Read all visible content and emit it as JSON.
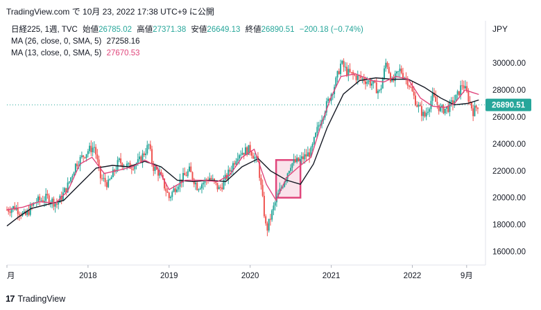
{
  "header": {
    "caption": "TradingView.com で 10月 23, 2022 17:38 UTC+9 に公開"
  },
  "legend": {
    "symbol": "日経225, 1週, TVC",
    "open_label": "始値",
    "open": "26785.02",
    "high_label": "高値",
    "high": "27371.38",
    "low_label": "安値",
    "low": "26649.13",
    "close_label": "終値",
    "close": "26890.51",
    "change": "−200.18 (−0.74%)",
    "ma26_label": "MA (26, close, 0, SMA, 5)",
    "ma26_value": "27258.16",
    "ma13_label": "MA (13, close, 0, SMA, 5)",
    "ma13_value": "27670.53"
  },
  "currency": "JPY",
  "price_tag": "26890.51",
  "footer": {
    "brand": "TradingView",
    "logo_icon": "tradingview-logo-icon"
  },
  "colors": {
    "up": "#26a69a",
    "down": "#ef5350",
    "ma13": "#e0457b",
    "ma26": "#131722",
    "highlight": "#e0457b"
  },
  "chart_data": {
    "type": "candlestick",
    "title": "日経225, 1週, TVC",
    "ylim": [
      15000,
      31600
    ],
    "y_ticks": [
      16000,
      18000,
      20000,
      22000,
      24000,
      26000,
      28000,
      30000
    ],
    "y_tick_labels": [
      "16000.00",
      "18000.00",
      "20000.00",
      "22000.00",
      "24000.00",
      "26000.00",
      "28000.00",
      "30000.00"
    ],
    "x_labels": [
      {
        "label": "月",
        "year": 2017.0
      },
      {
        "label": "2018",
        "year": 2018.0
      },
      {
        "label": "2019",
        "year": 2019.0
      },
      {
        "label": "2020",
        "year": 2020.0
      },
      {
        "label": "2021",
        "year": 2021.0
      },
      {
        "label": "2022",
        "year": 2022.0
      },
      {
        "label": "9月",
        "year": 2022.67
      }
    ],
    "x_range": [
      2017.0,
      2022.86
    ],
    "last_close": 26890.51,
    "closes": [
      {
        "t": 2017.0,
        "v": 19100
      },
      {
        "t": 2017.1,
        "v": 19300
      },
      {
        "t": 2017.22,
        "v": 18600
      },
      {
        "t": 2017.35,
        "v": 19700
      },
      {
        "t": 2017.5,
        "v": 20000
      },
      {
        "t": 2017.62,
        "v": 19500
      },
      {
        "t": 2017.75,
        "v": 20900
      },
      {
        "t": 2017.85,
        "v": 22500
      },
      {
        "t": 2018.0,
        "v": 23500
      },
      {
        "t": 2018.08,
        "v": 23800
      },
      {
        "t": 2018.15,
        "v": 21500
      },
      {
        "t": 2018.25,
        "v": 21000
      },
      {
        "t": 2018.38,
        "v": 22700
      },
      {
        "t": 2018.5,
        "v": 22300
      },
      {
        "t": 2018.62,
        "v": 22600
      },
      {
        "t": 2018.75,
        "v": 23900
      },
      {
        "t": 2018.8,
        "v": 22300
      },
      {
        "t": 2018.88,
        "v": 21800
      },
      {
        "t": 2019.0,
        "v": 20000
      },
      {
        "t": 2019.1,
        "v": 21000
      },
      {
        "t": 2019.25,
        "v": 22000
      },
      {
        "t": 2019.35,
        "v": 20800
      },
      {
        "t": 2019.5,
        "v": 21500
      },
      {
        "t": 2019.62,
        "v": 20600
      },
      {
        "t": 2019.75,
        "v": 22000
      },
      {
        "t": 2019.85,
        "v": 23300
      },
      {
        "t": 2020.0,
        "v": 23600
      },
      {
        "t": 2020.1,
        "v": 22500
      },
      {
        "t": 2020.2,
        "v": 17500
      },
      {
        "t": 2020.3,
        "v": 19500
      },
      {
        "t": 2020.4,
        "v": 21000
      },
      {
        "t": 2020.5,
        "v": 22500
      },
      {
        "t": 2020.62,
        "v": 22800
      },
      {
        "t": 2020.75,
        "v": 23400
      },
      {
        "t": 2020.85,
        "v": 25500
      },
      {
        "t": 2020.95,
        "v": 27000
      },
      {
        "t": 2021.05,
        "v": 28500
      },
      {
        "t": 2021.12,
        "v": 30000
      },
      {
        "t": 2021.2,
        "v": 29300
      },
      {
        "t": 2021.3,
        "v": 29000
      },
      {
        "t": 2021.4,
        "v": 28800
      },
      {
        "t": 2021.5,
        "v": 28500
      },
      {
        "t": 2021.6,
        "v": 27800
      },
      {
        "t": 2021.68,
        "v": 30200
      },
      {
        "t": 2021.75,
        "v": 28500
      },
      {
        "t": 2021.85,
        "v": 29500
      },
      {
        "t": 2021.95,
        "v": 28600
      },
      {
        "t": 2022.05,
        "v": 27000
      },
      {
        "t": 2022.15,
        "v": 26000
      },
      {
        "t": 2022.25,
        "v": 27500
      },
      {
        "t": 2022.35,
        "v": 26500
      },
      {
        "t": 2022.45,
        "v": 26700
      },
      {
        "t": 2022.55,
        "v": 27500
      },
      {
        "t": 2022.62,
        "v": 28500
      },
      {
        "t": 2022.68,
        "v": 27600
      },
      {
        "t": 2022.75,
        "v": 26400
      },
      {
        "t": 2022.81,
        "v": 26890
      }
    ],
    "ma13": [
      {
        "t": 2017.0,
        "v": 19100
      },
      {
        "t": 2017.2,
        "v": 19300
      },
      {
        "t": 2017.4,
        "v": 19700
      },
      {
        "t": 2017.6,
        "v": 19600
      },
      {
        "t": 2017.75,
        "v": 20500
      },
      {
        "t": 2017.9,
        "v": 22500
      },
      {
        "t": 2018.05,
        "v": 23000
      },
      {
        "t": 2018.2,
        "v": 21800
      },
      {
        "t": 2018.35,
        "v": 22000
      },
      {
        "t": 2018.55,
        "v": 22300
      },
      {
        "t": 2018.7,
        "v": 22800
      },
      {
        "t": 2018.85,
        "v": 22300
      },
      {
        "t": 2019.0,
        "v": 20600
      },
      {
        "t": 2019.2,
        "v": 21300
      },
      {
        "t": 2019.4,
        "v": 21300
      },
      {
        "t": 2019.6,
        "v": 21200
      },
      {
        "t": 2019.75,
        "v": 21700
      },
      {
        "t": 2019.9,
        "v": 23000
      },
      {
        "t": 2020.05,
        "v": 23600
      },
      {
        "t": 2020.2,
        "v": 21000
      },
      {
        "t": 2020.32,
        "v": 19800
      },
      {
        "t": 2020.45,
        "v": 21500
      },
      {
        "t": 2020.6,
        "v": 22300
      },
      {
        "t": 2020.75,
        "v": 23000
      },
      {
        "t": 2020.88,
        "v": 25500
      },
      {
        "t": 2021.0,
        "v": 27500
      },
      {
        "t": 2021.12,
        "v": 29000
      },
      {
        "t": 2021.3,
        "v": 29200
      },
      {
        "t": 2021.5,
        "v": 28700
      },
      {
        "t": 2021.65,
        "v": 28600
      },
      {
        "t": 2021.8,
        "v": 29000
      },
      {
        "t": 2021.95,
        "v": 28800
      },
      {
        "t": 2022.1,
        "v": 27400
      },
      {
        "t": 2022.25,
        "v": 26800
      },
      {
        "t": 2022.4,
        "v": 26700
      },
      {
        "t": 2022.52,
        "v": 27000
      },
      {
        "t": 2022.65,
        "v": 28000
      },
      {
        "t": 2022.75,
        "v": 27800
      },
      {
        "t": 2022.82,
        "v": 27670
      }
    ],
    "ma26": [
      {
        "t": 2017.0,
        "v": 17900
      },
      {
        "t": 2017.15,
        "v": 18600
      },
      {
        "t": 2017.3,
        "v": 19200
      },
      {
        "t": 2017.5,
        "v": 19500
      },
      {
        "t": 2017.7,
        "v": 19800
      },
      {
        "t": 2017.9,
        "v": 21000
      },
      {
        "t": 2018.1,
        "v": 22200
      },
      {
        "t": 2018.3,
        "v": 22400
      },
      {
        "t": 2018.5,
        "v": 22300
      },
      {
        "t": 2018.7,
        "v": 22700
      },
      {
        "t": 2018.9,
        "v": 22300
      },
      {
        "t": 2019.1,
        "v": 21300
      },
      {
        "t": 2019.3,
        "v": 21200
      },
      {
        "t": 2019.5,
        "v": 21300
      },
      {
        "t": 2019.7,
        "v": 21200
      },
      {
        "t": 2019.9,
        "v": 22300
      },
      {
        "t": 2020.1,
        "v": 22900
      },
      {
        "t": 2020.25,
        "v": 22000
      },
      {
        "t": 2020.45,
        "v": 21300
      },
      {
        "t": 2020.62,
        "v": 21000
      },
      {
        "t": 2020.78,
        "v": 22500
      },
      {
        "t": 2020.95,
        "v": 25200
      },
      {
        "t": 2021.15,
        "v": 27700
      },
      {
        "t": 2021.35,
        "v": 28700
      },
      {
        "t": 2021.55,
        "v": 28900
      },
      {
        "t": 2021.75,
        "v": 28800
      },
      {
        "t": 2021.95,
        "v": 28800
      },
      {
        "t": 2022.15,
        "v": 28200
      },
      {
        "t": 2022.35,
        "v": 27400
      },
      {
        "t": 2022.52,
        "v": 26900
      },
      {
        "t": 2022.68,
        "v": 27000
      },
      {
        "t": 2022.82,
        "v": 27258
      }
    ],
    "highlight_box": {
      "t0": 2020.32,
      "t1": 2020.62,
      "v0": 20000,
      "v1": 22800
    }
  }
}
